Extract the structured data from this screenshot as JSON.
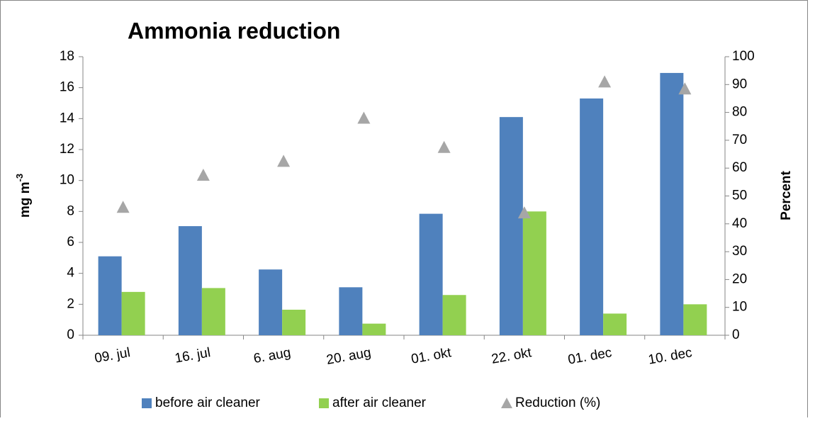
{
  "chart_data": {
    "type": "bar",
    "title": "Ammonia reduction",
    "y_label": {
      "text": "mg m",
      "superscript": "-3"
    },
    "y2_label": "Percent",
    "categories": [
      "09. jul",
      "16. jul",
      "6. aug",
      "20. aug",
      "01. okt",
      "22. okt",
      "01. dec",
      "10. dec"
    ],
    "series": [
      {
        "name": "before air cleaner",
        "color": "#4f81bd",
        "values": [
          5.1,
          7.05,
          4.25,
          3.1,
          7.85,
          14.1,
          15.3,
          16.95
        ]
      },
      {
        "name": "after air cleaner",
        "color": "#92d050",
        "values": [
          2.8,
          3.05,
          1.65,
          0.75,
          2.6,
          8.0,
          1.4,
          2.0
        ]
      },
      {
        "name": "Reduction (%)",
        "color": "#a6a6a6",
        "axis": "y2",
        "marker": "triangle",
        "values": [
          46,
          57.5,
          62.5,
          78,
          67.5,
          44,
          91,
          88.5
        ]
      }
    ],
    "ylim": [
      0,
      18
    ],
    "yticks": [
      0,
      2,
      4,
      6,
      8,
      10,
      12,
      14,
      16,
      18
    ],
    "y2lim": [
      0,
      100
    ],
    "y2ticks": [
      0,
      10,
      20,
      30,
      40,
      50,
      60,
      70,
      80,
      90,
      100
    ],
    "grid": false,
    "legend": "bottom"
  }
}
